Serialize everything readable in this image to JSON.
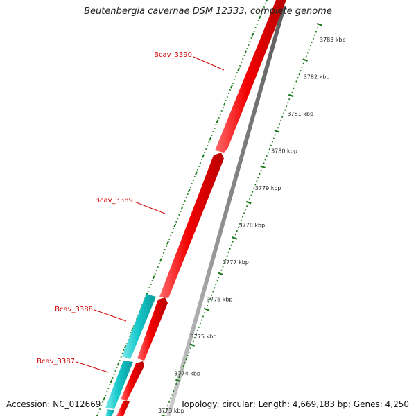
{
  "title": "Beutenbergia cavernae DSM 12333, complete genome",
  "footer": {
    "accession": "Accession: NC_012669",
    "summary": "Topology: circular; Length: 4,669,183 bp; Genes: 4,250"
  },
  "colors": {
    "forward_gene": "#f20000",
    "reverse_gene": "#16c9cc",
    "backbone": "#8a8a8a",
    "label": "#d00000",
    "ticks": "#1a7a1a",
    "tick_label": "#222222"
  },
  "genes": [
    {
      "name": "Bcav_3390"
    },
    {
      "name": "Bcav_3389"
    },
    {
      "name": "Bcav_3388"
    },
    {
      "name": "Bcav_3387"
    }
  ],
  "ruler": {
    "labels": [
      "3783 kbp",
      "3782 kbp",
      "3781 kbp",
      "3780 kbp",
      "3779 kbp",
      "3778 kbp",
      "3777 kbp",
      "3776 kbp",
      "3775 kbp",
      "3774 kbp",
      "3773 kbp"
    ]
  }
}
